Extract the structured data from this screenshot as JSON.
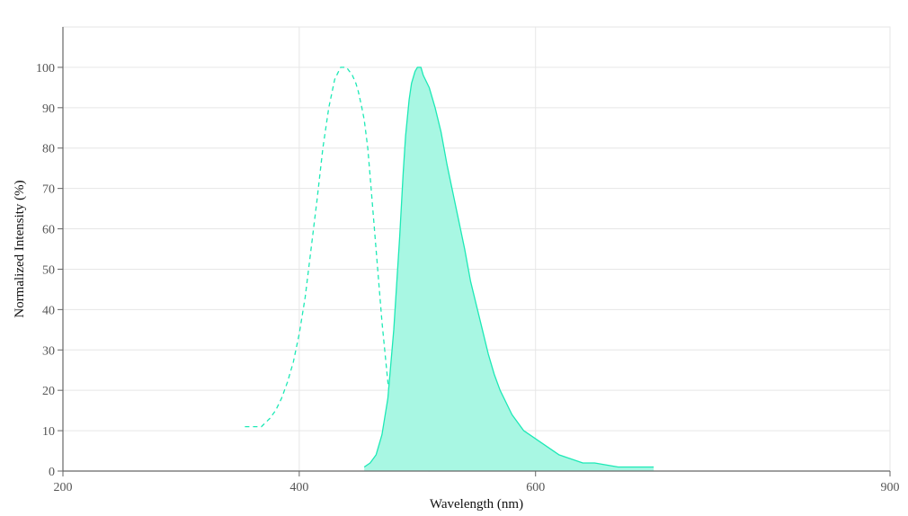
{
  "chart_data": {
    "type": "area",
    "title": "",
    "xlabel": "Wavelength (nm)",
    "ylabel": "Normalized Intensity (%)",
    "xlim": [
      200,
      900
    ],
    "ylim": [
      0,
      110
    ],
    "x_ticks": [
      200,
      400,
      600,
      900
    ],
    "y_ticks": [
      0,
      10,
      20,
      30,
      40,
      50,
      60,
      70,
      80,
      90,
      100
    ],
    "grid": true,
    "legend": "none",
    "series": [
      {
        "style": "dashed",
        "fill": false,
        "color": "#1de9b6",
        "x": [
          354,
          360,
          368,
          375,
          380,
          385,
          390,
          395,
          400,
          405,
          410,
          415,
          420,
          425,
          430,
          435,
          440,
          445,
          448,
          450,
          453,
          455,
          458,
          460,
          465,
          470,
          475,
          480,
          485,
          490,
          495,
          500,
          505,
          510
        ],
        "y": [
          11,
          11,
          11,
          13,
          15,
          18,
          22,
          27,
          34,
          43,
          55,
          67,
          80,
          90,
          97,
          100,
          100,
          98,
          96,
          94,
          90,
          87,
          80,
          73,
          55,
          37,
          22,
          12,
          6,
          3,
          1.5,
          0.5,
          0.2,
          0
        ]
      },
      {
        "style": "solid",
        "fill": true,
        "color": "#1de9b6",
        "fill_color": "#a8f7e3",
        "x": [
          455,
          460,
          465,
          470,
          475,
          480,
          485,
          488,
          490,
          493,
          495,
          498,
          500,
          503,
          505,
          510,
          515,
          520,
          525,
          530,
          535,
          540,
          545,
          550,
          555,
          560,
          565,
          570,
          575,
          580,
          585,
          590,
          595,
          600,
          605,
          610,
          615,
          620,
          625,
          630,
          640,
          650,
          660,
          670,
          680,
          690,
          700
        ],
        "y": [
          1,
          2,
          4,
          9,
          18,
          35,
          58,
          74,
          83,
          92,
          96,
          99,
          100,
          100,
          98,
          95,
          90,
          84,
          76,
          69,
          62,
          55,
          47,
          41,
          35,
          29,
          24,
          20,
          17,
          14,
          12,
          10,
          9,
          8,
          7,
          6,
          5,
          4,
          3.5,
          3,
          2,
          2,
          1.5,
          1,
          1,
          1,
          1
        ]
      }
    ]
  }
}
